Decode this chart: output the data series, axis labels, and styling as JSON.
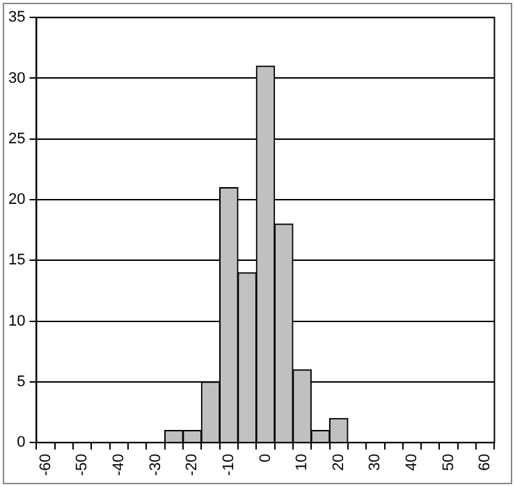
{
  "chart_data": {
    "type": "bar",
    "categories": [
      "-60",
      null,
      "-50",
      null,
      "-40",
      null,
      "-30",
      null,
      "-20",
      null,
      "-10",
      null,
      "0",
      null,
      "10",
      null,
      "20",
      null,
      "30",
      null,
      "40",
      null,
      "50",
      null,
      "60"
    ],
    "values": [
      0,
      0,
      0,
      0,
      0,
      0,
      0,
      1,
      1,
      5,
      21,
      14,
      31,
      18,
      6,
      1,
      2,
      0,
      0,
      0,
      0,
      0,
      0,
      0,
      0
    ],
    "color": "#c0c0c0",
    "ylim": [
      0,
      35
    ],
    "yticks": [
      0,
      5,
      10,
      15,
      20,
      25,
      30,
      35
    ],
    "grid": "y",
    "legend": false
  }
}
